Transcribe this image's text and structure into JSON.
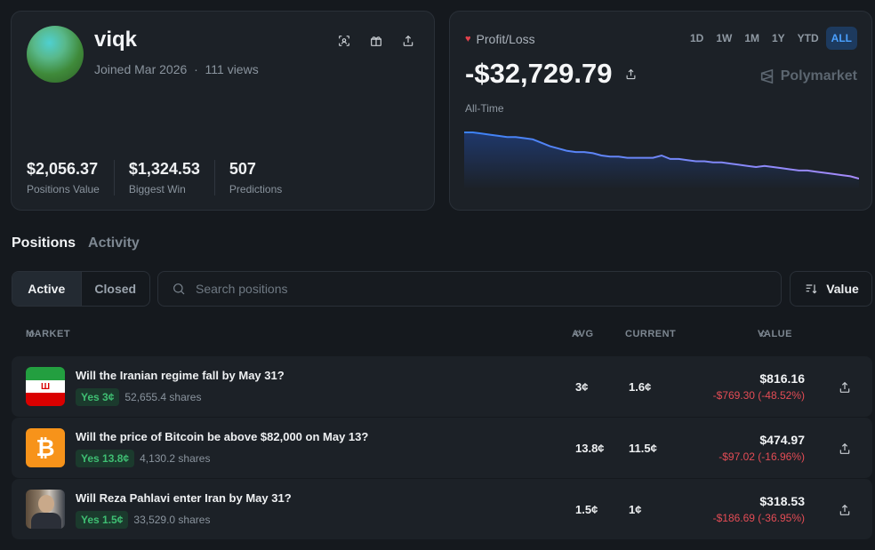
{
  "profile": {
    "username": "viqk",
    "joined": "Joined Mar 2026",
    "views": "111 views",
    "stats": [
      {
        "value": "$2,056.37",
        "label": "Positions Value"
      },
      {
        "value": "$1,324.53",
        "label": "Biggest Win"
      },
      {
        "value": "507",
        "label": "Predictions"
      }
    ]
  },
  "pnl": {
    "label": "Profit/Loss",
    "value": "-$32,729.79",
    "period_label": "All-Time",
    "brand": "Polymarket",
    "ranges": [
      "1D",
      "1W",
      "1M",
      "1Y",
      "YTD",
      "ALL"
    ],
    "active_range": "ALL",
    "chart_values": [
      100,
      100,
      99,
      98,
      97,
      96,
      96,
      95,
      94,
      91,
      88,
      86,
      84,
      83,
      83,
      82,
      80,
      79,
      79,
      78,
      78,
      78,
      78,
      80,
      77,
      77,
      76,
      75,
      75,
      74,
      74,
      73,
      72,
      71,
      70,
      71,
      70,
      69,
      68,
      67,
      67,
      66,
      65,
      64,
      63,
      62,
      60
    ],
    "colors": {
      "line_start": "#3b82f6",
      "line_end": "#a78bfa"
    }
  },
  "tabs": [
    "Positions",
    "Activity"
  ],
  "filter": {
    "active": "Active",
    "closed": "Closed"
  },
  "search": {
    "placeholder": "Search positions"
  },
  "sort": {
    "label": "Value"
  },
  "table": {
    "headers": {
      "market": "MARKET",
      "avg": "AVG",
      "current": "CURRENT",
      "value": "VALUE"
    },
    "rows": [
      {
        "title": "Will the Iranian regime fall by May 31?",
        "badge": "Yes 3¢",
        "shares": "52,655.4 shares",
        "avg": "3¢",
        "current": "1.6¢",
        "value": "$816.16",
        "change": "-$769.30 (-48.52%)",
        "thumb": "iran-flag"
      },
      {
        "title": "Will the price of Bitcoin be above $82,000 on May 13?",
        "badge": "Yes 13.8¢",
        "shares": "4,130.2 shares",
        "avg": "13.8¢",
        "current": "11.5¢",
        "value": "$474.97",
        "change": "-$97.02 (-16.96%)",
        "thumb": "bitcoin-logo"
      },
      {
        "title": "Will Reza Pahlavi enter Iran by May 31?",
        "badge": "Yes 1.5¢",
        "shares": "33,529.0 shares",
        "avg": "1.5¢",
        "current": "1¢",
        "value": "$318.53",
        "change": "-$186.69 (-36.95%)",
        "thumb": "person-photo"
      }
    ]
  }
}
